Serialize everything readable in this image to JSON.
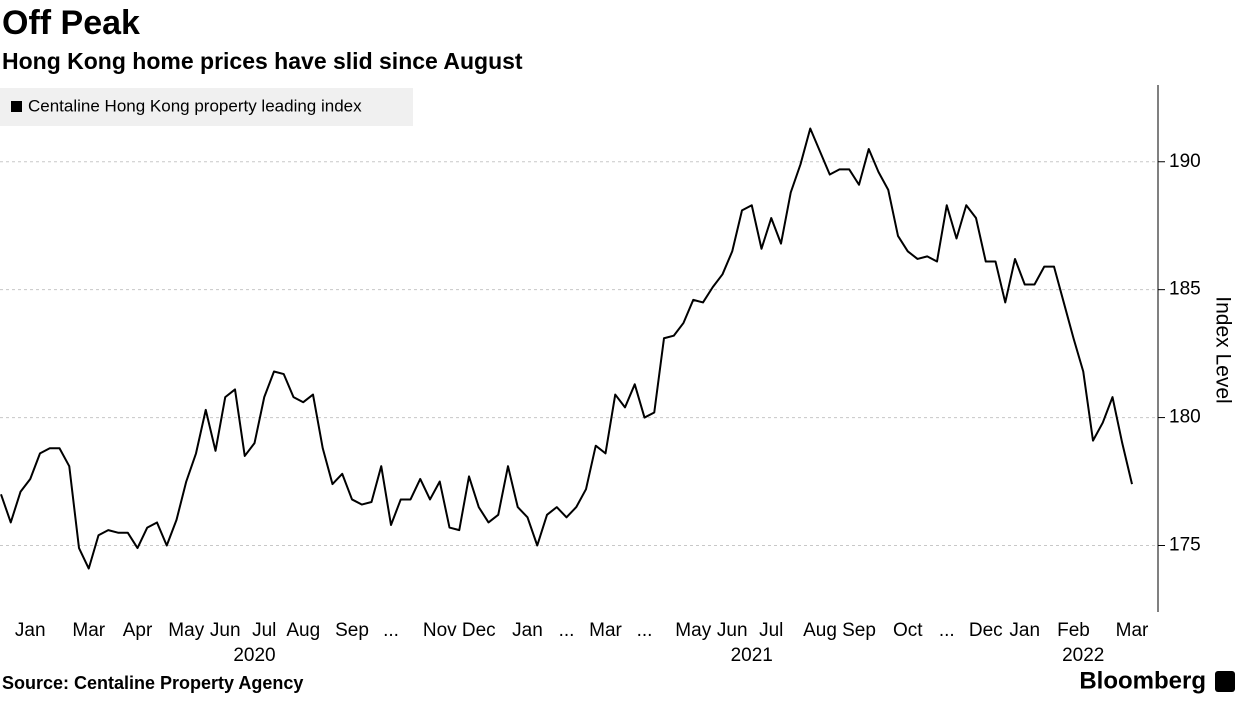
{
  "chart_data": {
    "type": "line",
    "title": "Off Peak",
    "subtitle": "Hong Kong home prices have slid since August",
    "y_axis_label": "Index Level",
    "source": "Source: Centaline Property Agency",
    "brand": "Bloomberg",
    "legend": "top-left",
    "grid": true,
    "ylim": [
      172.4,
      193
    ],
    "yticks": [
      175,
      180,
      185,
      190
    ],
    "categories": [
      null,
      null,
      null,
      "Jan",
      null,
      null,
      null,
      null,
      null,
      "Mar",
      null,
      null,
      null,
      null,
      "Apr",
      null,
      null,
      null,
      null,
      "May",
      null,
      null,
      null,
      "Jun",
      null,
      null,
      null,
      "Jul",
      null,
      null,
      null,
      "Aug",
      null,
      null,
      null,
      null,
      "Sep",
      null,
      null,
      null,
      "...",
      null,
      null,
      null,
      null,
      "Nov",
      null,
      null,
      null,
      "Dec",
      null,
      null,
      null,
      null,
      "Jan",
      null,
      null,
      null,
      "...",
      null,
      null,
      null,
      "Mar",
      null,
      null,
      null,
      "...",
      null,
      null,
      null,
      null,
      "May",
      null,
      null,
      null,
      "Jun",
      null,
      null,
      null,
      "Jul",
      null,
      null,
      null,
      null,
      "Aug",
      null,
      null,
      null,
      "Sep",
      null,
      null,
      null,
      null,
      "Oct",
      null,
      null,
      null,
      "...",
      null,
      null,
      null,
      "Dec",
      null,
      null,
      null,
      "Jan",
      null,
      null,
      null,
      null,
      "Feb",
      null,
      null,
      null,
      null,
      null,
      "Mar"
    ],
    "years": [
      null,
      null,
      null,
      null,
      null,
      null,
      null,
      null,
      null,
      null,
      null,
      null,
      null,
      null,
      null,
      null,
      null,
      null,
      null,
      null,
      null,
      null,
      null,
      null,
      null,
      null,
      "2020",
      null,
      null,
      null,
      null,
      null,
      null,
      null,
      null,
      null,
      null,
      null,
      null,
      null,
      null,
      null,
      null,
      null,
      null,
      null,
      null,
      null,
      null,
      null,
      null,
      null,
      null,
      null,
      null,
      null,
      null,
      null,
      null,
      null,
      null,
      null,
      null,
      null,
      null,
      null,
      null,
      null,
      null,
      null,
      null,
      null,
      null,
      null,
      null,
      null,
      null,
      "2021",
      null,
      null,
      null,
      null,
      null,
      null,
      null,
      null,
      null,
      null,
      null,
      null,
      null,
      null,
      null,
      null,
      null,
      null,
      null,
      null,
      null,
      null,
      null,
      null,
      null,
      null,
      null,
      null,
      null,
      null,
      null,
      null,
      null,
      "2022",
      null,
      null,
      null,
      null,
      null
    ],
    "series": [
      {
        "name": "Centaline Hong Kong property leading index",
        "color": "#000000",
        "values": [
          177.0,
          175.9,
          177.1,
          177.6,
          178.6,
          178.8,
          178.8,
          178.1,
          174.9,
          174.1,
          175.4,
          175.6,
          175.5,
          175.5,
          174.9,
          175.7,
          175.9,
          175.0,
          176.0,
          177.5,
          178.6,
          180.3,
          178.7,
          180.8,
          181.1,
          178.5,
          179.0,
          180.8,
          181.8,
          181.7,
          180.8,
          180.6,
          180.9,
          178.8,
          177.4,
          177.8,
          176.8,
          176.6,
          176.7,
          178.1,
          175.8,
          176.8,
          176.8,
          177.6,
          176.8,
          177.5,
          175.7,
          175.6,
          177.7,
          176.5,
          175.9,
          176.2,
          178.1,
          176.5,
          176.1,
          175.0,
          176.2,
          176.5,
          176.1,
          176.5,
          177.2,
          178.9,
          178.6,
          180.9,
          180.4,
          181.3,
          180.0,
          180.2,
          183.1,
          183.2,
          183.7,
          184.6,
          184.5,
          185.1,
          185.6,
          186.5,
          188.1,
          188.3,
          186.6,
          187.8,
          186.8,
          188.8,
          189.9,
          191.3,
          190.4,
          189.5,
          189.7,
          189.7,
          189.1,
          190.5,
          189.6,
          188.9,
          187.1,
          186.5,
          186.2,
          186.3,
          186.1,
          188.3,
          187.0,
          188.3,
          187.8,
          186.1,
          186.1,
          184.5,
          186.2,
          185.2,
          185.2,
          185.9,
          185.9,
          184.5,
          183.1,
          181.8,
          179.1,
          179.8,
          180.8,
          179.0,
          177.4
        ]
      }
    ]
  }
}
